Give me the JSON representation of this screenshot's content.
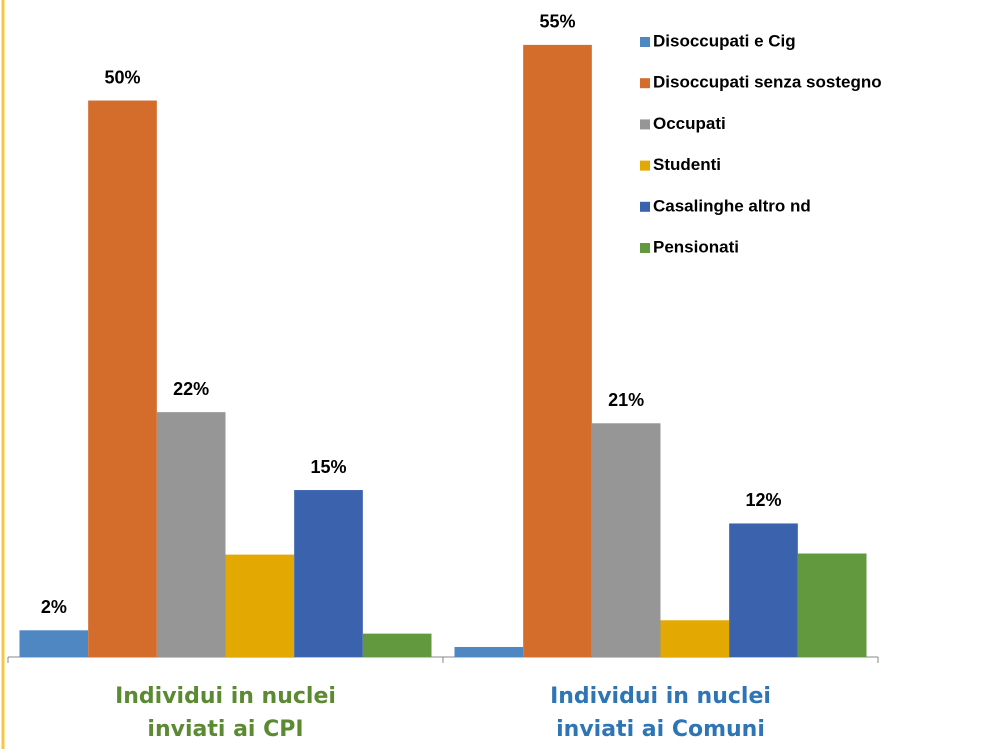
{
  "chart_data": {
    "type": "bar",
    "categories": [
      "Individui in nuclei inviati ai CPI",
      "Individui in nuclei inviati ai Comuni"
    ],
    "category_colors": [
      "#5b8a32",
      "#2e75b6"
    ],
    "ylim": [
      0,
      58
    ],
    "series": [
      {
        "name": "Disoccupati e Cig",
        "color": "#4f87c2",
        "values": [
          2.4,
          0.9
        ],
        "value_labels": [
          "2%",
          null
        ]
      },
      {
        "name": "Disoccupati senza sostegno",
        "color": "#d46c2b",
        "values": [
          50,
          55
        ],
        "value_labels": [
          "50%",
          "55%"
        ]
      },
      {
        "name": "Occupati",
        "color": "#969696",
        "values": [
          22,
          21
        ],
        "value_labels": [
          "22%",
          "21%"
        ]
      },
      {
        "name": "Studenti",
        "color": "#e3a802",
        "values": [
          9.2,
          3.3
        ],
        "value_labels": [
          null,
          null
        ]
      },
      {
        "name": "Casalinghe altro nd",
        "color": "#3a62ad",
        "values": [
          15,
          12
        ],
        "value_labels": [
          "15%",
          "12%"
        ]
      },
      {
        "name": "Pensionati",
        "color": "#62993e",
        "values": [
          2.1,
          9.3
        ],
        "value_labels": [
          null,
          null
        ]
      }
    ]
  }
}
